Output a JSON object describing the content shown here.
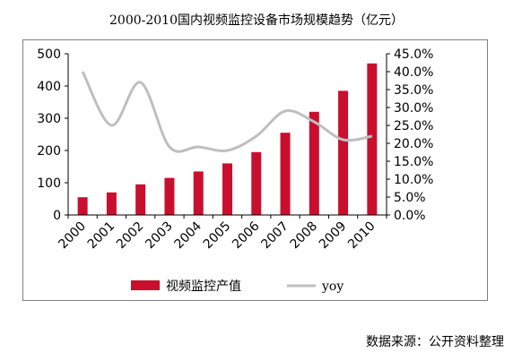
{
  "title": "2000-2010国内视频监控设备市场规模趋势（亿元）",
  "source": "数据来源：公开资料整理",
  "colors": {
    "bar": "#c8102e",
    "line": "#bfbfbf",
    "axis": "#000000",
    "frame": "#7f7f7f"
  },
  "chart_data": {
    "type": "bar",
    "categories": [
      "2000",
      "2001",
      "2002",
      "2003",
      "2004",
      "2005",
      "2006",
      "2007",
      "2008",
      "2009",
      "2010"
    ],
    "series": [
      {
        "name": "视频监控产值",
        "type": "bar",
        "axis": "left",
        "values": [
          55,
          70,
          95,
          115,
          135,
          160,
          195,
          255,
          320,
          385,
          470
        ]
      },
      {
        "name": "yoy",
        "type": "line",
        "axis": "right",
        "values": [
          0.4,
          0.25,
          0.37,
          0.19,
          0.19,
          0.18,
          0.22,
          0.29,
          0.26,
          0.21,
          0.22
        ]
      }
    ],
    "ylim_left": [
      0,
      500
    ],
    "yticks_left": [
      "0",
      "100",
      "200",
      "300",
      "400",
      "500"
    ],
    "ylim_right": [
      0,
      0.45
    ],
    "yticks_right": [
      "0.0%",
      "5.0%",
      "10.0%",
      "15.0%",
      "20.0%",
      "25.0%",
      "30.0%",
      "35.0%",
      "40.0%",
      "45.0%"
    ],
    "legend_position": "bottom",
    "grid": false
  }
}
